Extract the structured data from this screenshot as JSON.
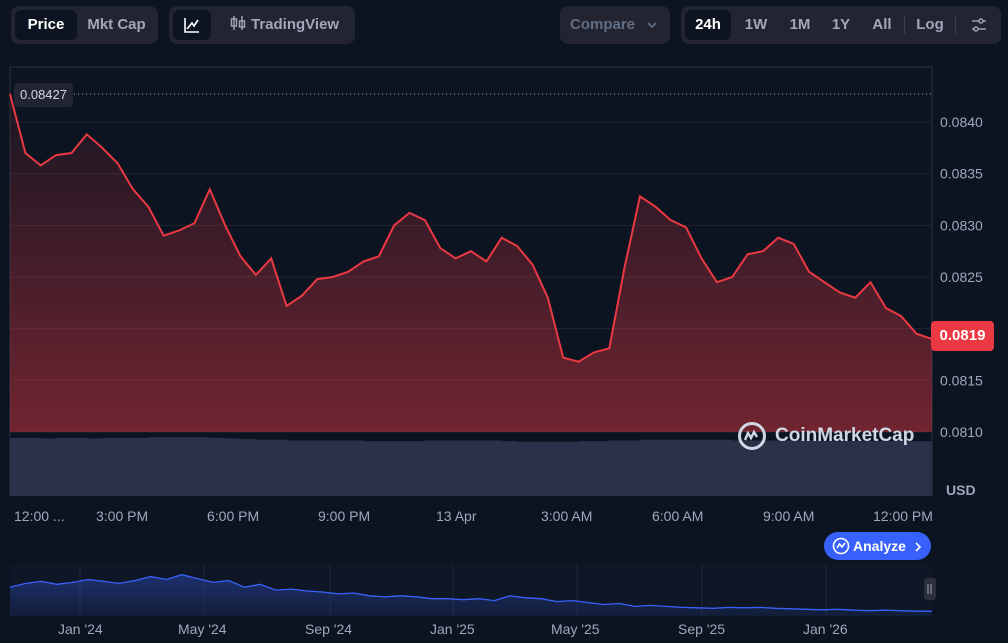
{
  "toolbar": {
    "price_label": "Price",
    "mktcap_label": "Mkt Cap",
    "tradingview_label": "TradingView",
    "compare_label": "Compare",
    "ranges": [
      "24h",
      "1W",
      "1M",
      "1Y",
      "All"
    ],
    "active_range": "24h",
    "log_label": "Log"
  },
  "chart_data": {
    "type": "area",
    "currency": "USD",
    "y_ticks": [
      "0.0840",
      "0.0835",
      "0.0830",
      "0.0825",
      "0.0820",
      "0.0815",
      "0.0810"
    ],
    "ylim": [
      0.0808,
      0.0843
    ],
    "x_tick_labels": [
      "12:00 ...",
      "3:00 PM",
      "6:00 PM",
      "9:00 PM",
      "13 Apr",
      "3:00 AM",
      "6:00 AM",
      "9:00 AM",
      "12:00 PM"
    ],
    "series": [
      {
        "x": [
          0,
          0.4,
          0.8,
          1.2,
          1.6,
          2.0,
          2.4,
          2.8,
          3.2,
          3.6,
          4.0,
          4.4,
          4.8,
          5.2,
          5.6,
          6.0,
          6.4,
          6.8,
          7.2,
          7.6,
          8.0,
          8.4,
          8.8,
          9.2,
          9.6,
          10.0,
          10.4,
          10.8,
          11.2,
          11.6,
          12.0,
          12.4,
          12.8,
          13.2,
          13.6,
          14.0,
          14.4,
          14.8,
          15.2,
          15.6,
          16.0,
          16.4,
          16.8,
          17.2,
          17.6,
          18.0,
          18.4,
          18.8,
          19.2,
          19.6,
          20.0,
          20.4,
          20.8,
          21.2,
          21.6,
          22.0,
          22.4,
          22.8,
          23.2,
          23.6,
          24.0
        ],
        "values": [
          0.08427,
          0.0837,
          0.08358,
          0.08368,
          0.0837,
          0.08388,
          0.08375,
          0.0836,
          0.08335,
          0.08318,
          0.0829,
          0.08295,
          0.08302,
          0.08335,
          0.083,
          0.0827,
          0.08252,
          0.08268,
          0.08222,
          0.08232,
          0.08248,
          0.0825,
          0.08255,
          0.08265,
          0.0827,
          0.083,
          0.08312,
          0.08305,
          0.08278,
          0.08268,
          0.08275,
          0.08265,
          0.08288,
          0.0828,
          0.08262,
          0.0823,
          0.08172,
          0.08168,
          0.08177,
          0.08181,
          0.0826,
          0.08328,
          0.08318,
          0.08305,
          0.08298,
          0.08268,
          0.08245,
          0.0825,
          0.08272,
          0.08275,
          0.08288,
          0.08282,
          0.08255,
          0.08245,
          0.08235,
          0.0823,
          0.08245,
          0.0822,
          0.08212,
          0.08195,
          0.0819
        ]
      }
    ],
    "max_label": "0.08427",
    "last_price": "0.0819",
    "volume": [
      0.88,
      0.88,
      0.87,
      0.88,
      0.88,
      0.87,
      0.88,
      0.88,
      0.88,
      0.89,
      0.89,
      0.89,
      0.89,
      0.88,
      0.87,
      0.86,
      0.85,
      0.85,
      0.84,
      0.84,
      0.84,
      0.84,
      0.84,
      0.83,
      0.83,
      0.83,
      0.83,
      0.84,
      0.84,
      0.84,
      0.84,
      0.84,
      0.83,
      0.82,
      0.82,
      0.82,
      0.82,
      0.83,
      0.83,
      0.84,
      0.84,
      0.85,
      0.85,
      0.85,
      0.85,
      0.85,
      0.85,
      0.84,
      0.84,
      0.84,
      0.84,
      0.84,
      0.84,
      0.83,
      0.83,
      0.83,
      0.83,
      0.83,
      0.83,
      0.83
    ]
  },
  "navigator": {
    "labels": [
      "Jan '24",
      "May '24",
      "Sep '24",
      "Jan '25",
      "May '25",
      "Sep '25",
      "Jan '26"
    ],
    "values": [
      0.6,
      0.68,
      0.72,
      0.66,
      0.7,
      0.76,
      0.72,
      0.68,
      0.74,
      0.82,
      0.76,
      0.86,
      0.78,
      0.7,
      0.74,
      0.6,
      0.66,
      0.54,
      0.56,
      0.52,
      0.5,
      0.46,
      0.48,
      0.42,
      0.4,
      0.42,
      0.4,
      0.36,
      0.36,
      0.34,
      0.36,
      0.32,
      0.42,
      0.38,
      0.36,
      0.3,
      0.32,
      0.28,
      0.24,
      0.26,
      0.2,
      0.22,
      0.2,
      0.18,
      0.17,
      0.16,
      0.18,
      0.17,
      0.18,
      0.16,
      0.15,
      0.14,
      0.13,
      0.14,
      0.12,
      0.11,
      0.12,
      0.11,
      0.1,
      0.1
    ]
  },
  "watermark": "CoinMarketCap",
  "analyze_label": "Analyze"
}
